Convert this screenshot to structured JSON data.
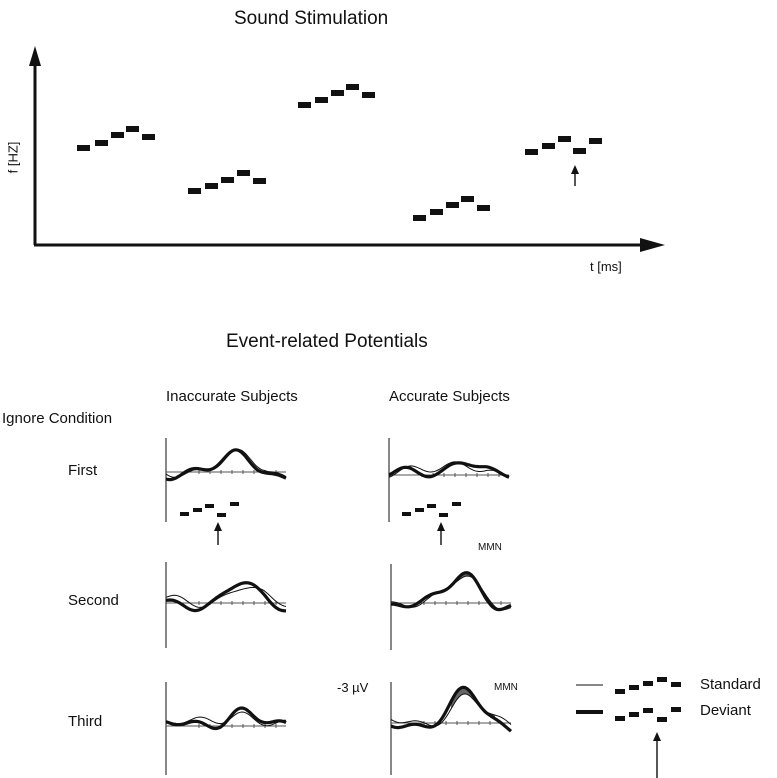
{
  "sound_stimulation": {
    "title": "Sound Stimulation",
    "y_axis_label": "f [HZ]",
    "x_axis_label": "t [ms]"
  },
  "erp": {
    "title": "Event-related Potentials",
    "columns": [
      "Inaccurate Subjects",
      "Accurate Subjects"
    ],
    "condition_label": "Ignore Condition",
    "rows": [
      "First",
      "Second",
      "Third"
    ],
    "scale_label": "-3 µV",
    "mmn_label": "MMN"
  },
  "legend": {
    "standard": "Standard",
    "deviant": "Deviant"
  }
}
